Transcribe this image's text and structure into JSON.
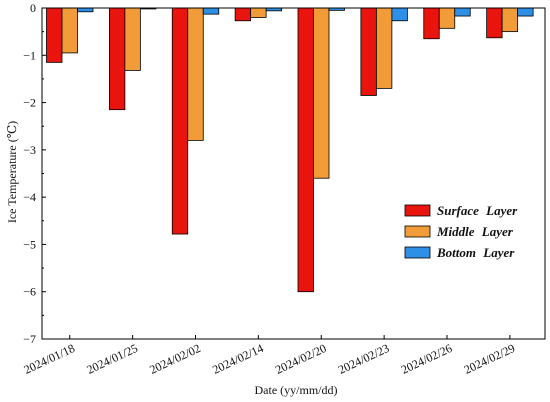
{
  "chart_data": {
    "type": "bar",
    "title": "",
    "xlabel": "Date (yy/mm/dd)",
    "ylabel": "Ice Temperature (℃)",
    "ylim": [
      -7,
      0
    ],
    "yticks": [
      0,
      -1,
      -2,
      -3,
      -4,
      -5,
      -6,
      -7
    ],
    "grid": false,
    "legend_position": "right",
    "categories": [
      "2024/01/18",
      "2024/01/25",
      "2024/02/02",
      "2024/02/14",
      "2024/02/20",
      "2024/02/23",
      "2024/02/26",
      "2024/02/29"
    ],
    "series": [
      {
        "name": "Surface Layer",
        "color": "#e8140d",
        "values": [
          -1.15,
          -2.15,
          -4.78,
          -0.27,
          -6.0,
          -1.85,
          -0.65,
          -0.63
        ]
      },
      {
        "name": "Middle Layer",
        "color": "#f19c38",
        "values": [
          -0.95,
          -1.32,
          -2.8,
          -0.2,
          -3.6,
          -1.7,
          -0.43,
          -0.5
        ]
      },
      {
        "name": "Bottom Layer",
        "color": "#2d8fe6",
        "values": [
          -0.08,
          -0.02,
          -0.13,
          -0.06,
          -0.05,
          -0.27,
          -0.17,
          -0.17
        ]
      }
    ]
  }
}
